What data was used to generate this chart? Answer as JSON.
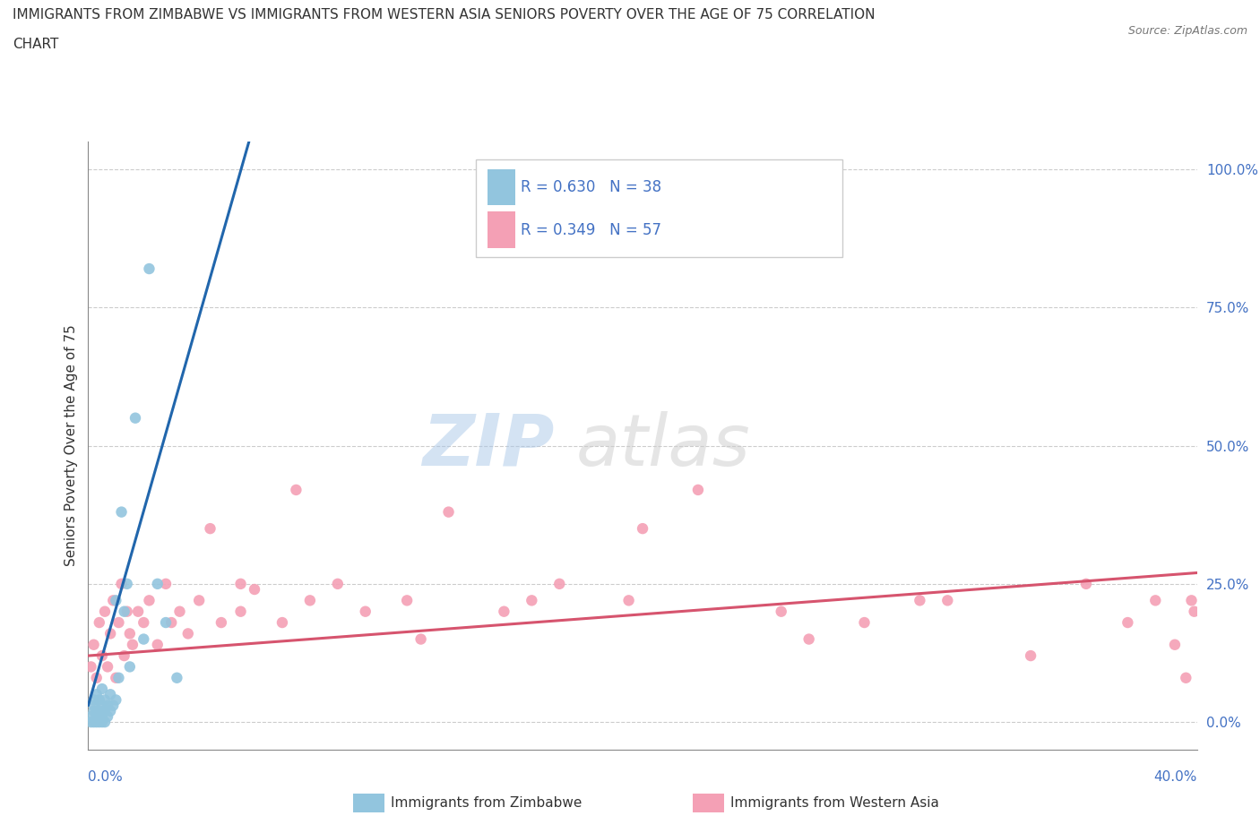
{
  "title_line1": "IMMIGRANTS FROM ZIMBABWE VS IMMIGRANTS FROM WESTERN ASIA SENIORS POVERTY OVER THE AGE OF 75 CORRELATION",
  "title_line2": "CHART",
  "source": "Source: ZipAtlas.com",
  "ylabel": "Seniors Poverty Over the Age of 75",
  "ylabel_ticks": [
    "0.0%",
    "25.0%",
    "50.0%",
    "75.0%",
    "100.0%"
  ],
  "ylabel_vals": [
    0.0,
    0.25,
    0.5,
    0.75,
    1.0
  ],
  "xmin": 0.0,
  "xmax": 0.4,
  "ymin": -0.05,
  "ymax": 1.05,
  "color_zimbabwe": "#92c5de",
  "color_western_asia": "#f4a0b5",
  "color_line_zimbabwe": "#2166ac",
  "color_line_western_asia": "#d6546e",
  "legend_label1": "Immigrants from Zimbabwe",
  "legend_label2": "Immigrants from Western Asia",
  "watermark_zip": "ZIP",
  "watermark_atlas": "atlas",
  "zim_x": [
    0.001,
    0.001,
    0.002,
    0.002,
    0.002,
    0.002,
    0.003,
    0.003,
    0.003,
    0.003,
    0.004,
    0.004,
    0.004,
    0.005,
    0.005,
    0.005,
    0.005,
    0.006,
    0.006,
    0.006,
    0.007,
    0.007,
    0.008,
    0.008,
    0.009,
    0.01,
    0.01,
    0.011,
    0.012,
    0.013,
    0.014,
    0.015,
    0.017,
    0.02,
    0.022,
    0.025,
    0.028,
    0.032
  ],
  "zim_y": [
    0.0,
    0.01,
    0.0,
    0.02,
    0.03,
    0.04,
    0.0,
    0.01,
    0.02,
    0.05,
    0.0,
    0.02,
    0.04,
    0.0,
    0.01,
    0.03,
    0.06,
    0.0,
    0.02,
    0.04,
    0.01,
    0.03,
    0.02,
    0.05,
    0.03,
    0.04,
    0.22,
    0.08,
    0.38,
    0.2,
    0.25,
    0.1,
    0.55,
    0.15,
    0.82,
    0.25,
    0.18,
    0.08
  ],
  "wa_x": [
    0.001,
    0.002,
    0.003,
    0.004,
    0.005,
    0.006,
    0.007,
    0.008,
    0.009,
    0.01,
    0.011,
    0.012,
    0.013,
    0.014,
    0.015,
    0.016,
    0.018,
    0.02,
    0.022,
    0.025,
    0.028,
    0.03,
    0.033,
    0.036,
    0.04,
    0.044,
    0.048,
    0.055,
    0.06,
    0.07,
    0.08,
    0.09,
    0.1,
    0.115,
    0.13,
    0.15,
    0.17,
    0.195,
    0.22,
    0.25,
    0.28,
    0.31,
    0.34,
    0.36,
    0.375,
    0.385,
    0.392,
    0.396,
    0.398,
    0.399,
    0.055,
    0.075,
    0.12,
    0.16,
    0.2,
    0.26,
    0.3
  ],
  "wa_y": [
    0.1,
    0.14,
    0.08,
    0.18,
    0.12,
    0.2,
    0.1,
    0.16,
    0.22,
    0.08,
    0.18,
    0.25,
    0.12,
    0.2,
    0.16,
    0.14,
    0.2,
    0.18,
    0.22,
    0.14,
    0.25,
    0.18,
    0.2,
    0.16,
    0.22,
    0.35,
    0.18,
    0.2,
    0.24,
    0.18,
    0.22,
    0.25,
    0.2,
    0.22,
    0.38,
    0.2,
    0.25,
    0.22,
    0.42,
    0.2,
    0.18,
    0.22,
    0.12,
    0.25,
    0.18,
    0.22,
    0.14,
    0.08,
    0.22,
    0.2,
    0.25,
    0.42,
    0.15,
    0.22,
    0.35,
    0.15,
    0.22
  ],
  "zim_trend_x0": 0.0,
  "zim_trend_y0": 0.03,
  "zim_trend_x1": 0.058,
  "zim_trend_y1": 1.05,
  "wa_trend_x0": 0.0,
  "wa_trend_y0": 0.12,
  "wa_trend_x1": 0.4,
  "wa_trend_y1": 0.27
}
